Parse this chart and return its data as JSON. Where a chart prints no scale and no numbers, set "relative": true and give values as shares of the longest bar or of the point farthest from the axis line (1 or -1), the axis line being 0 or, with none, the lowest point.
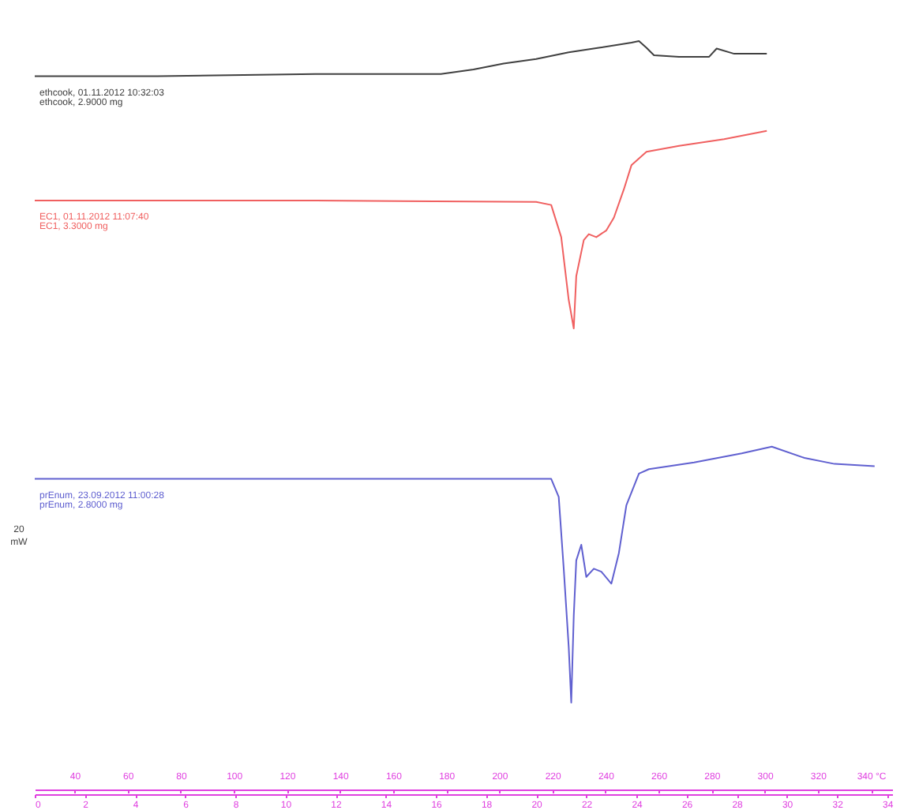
{
  "chart_data": {
    "type": "line",
    "relative": true,
    "xlim": [
      0,
      34.2
    ],
    "xticks": [
      0,
      2,
      4,
      6,
      8,
      10,
      12,
      14,
      16,
      18,
      20,
      22,
      24,
      26,
      28,
      30,
      32,
      34
    ],
    "x2lim": [
      25,
      348
    ],
    "x2ticks": [
      40,
      60,
      80,
      100,
      120,
      140,
      160,
      180,
      200,
      220,
      240,
      260,
      280,
      300,
      320,
      {
        "value": 340,
        "label": "340 °C"
      }
    ],
    "grid": false,
    "legend": false,
    "marker": "none",
    "line_style": "solid",
    "annotations": [
      "ethcook, 2.9000 mg",
      "EC1, 3.3000 mg",
      "prEnum, 2.8000 mg",
      "20 mW"
    ],
    "series": [
      {
        "name": "ethcook, 01.11.2012 10:32:03",
        "color": "#404040",
        "x": [
          0,
          4.9,
          11.2,
          16.2,
          17.5,
          18.7,
          20.0,
          21.3,
          22.5,
          23.8,
          24.1,
          24.4,
          24.7,
          25.7,
          26.9,
          27.2,
          27.9,
          29.2
        ],
        "values": [
          0.953,
          0.953,
          0.956,
          0.956,
          0.962,
          0.97,
          0.976,
          0.985,
          0.991,
          0.998,
          1,
          0.991,
          0.981,
          0.979,
          0.979,
          0.99,
          0.983,
          0.983
        ]
      },
      {
        "name": "EC1, 01.11.2012 11:07:40",
        "color": "#f06060",
        "x": [
          0,
          11.2,
          20.0,
          20.6,
          21.0,
          21.3,
          21.5,
          21.6,
          21.9,
          22.1,
          22.4,
          22.8,
          23.1,
          23.5,
          23.8,
          24.4,
          25.7,
          27.5,
          29.2
        ],
        "values": [
          0.787,
          0.787,
          0.785,
          0.781,
          0.738,
          0.654,
          0.616,
          0.686,
          0.734,
          0.742,
          0.738,
          0.747,
          0.764,
          0.802,
          0.834,
          0.852,
          0.86,
          0.869,
          0.88
        ]
      },
      {
        "name": "prEnum, 23.09.2012 11:00:28",
        "color": "#6060d0",
        "x": [
          0,
          11.2,
          20.6,
          20.9,
          21.1,
          21.3,
          21.4,
          21.5,
          21.6,
          21.8,
          22.0,
          22.3,
          22.6,
          23.0,
          23.3,
          23.6,
          24.1,
          24.5,
          26.3,
          28.2,
          29.4,
          30.7,
          31.9,
          33.5
        ],
        "values": [
          0.415,
          0.415,
          0.415,
          0.391,
          0.295,
          0.19,
          0.116,
          0.232,
          0.306,
          0.327,
          0.284,
          0.295,
          0.291,
          0.275,
          0.316,
          0.38,
          0.422,
          0.428,
          0.437,
          0.449,
          0.458,
          0.443,
          0.435,
          0.432
        ]
      }
    ]
  }
}
